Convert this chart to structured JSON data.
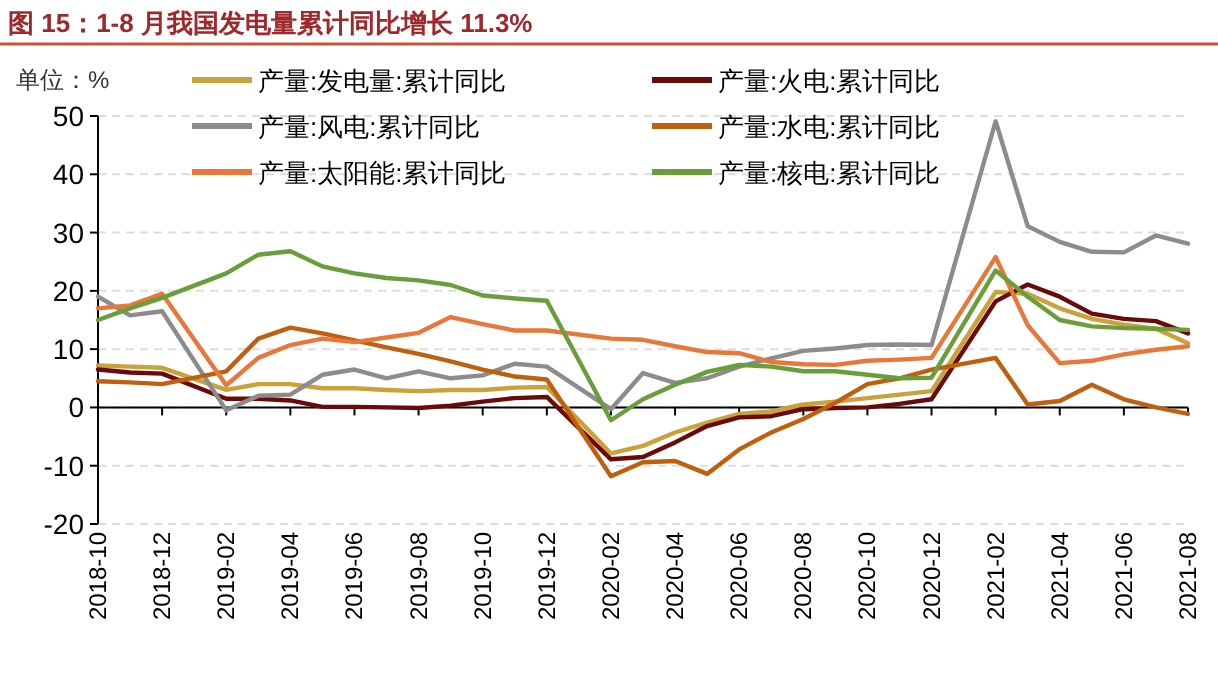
{
  "chart_data": {
    "type": "line",
    "title": "图 15：1-8 月我国发电量累计同比增长 11.3%",
    "annotations": [
      "单位：%"
    ],
    "x": [
      "2018-10",
      "2018-11",
      "2018-12",
      "2019-02",
      "2019-03",
      "2019-04",
      "2019-05",
      "2019-06",
      "2019-07",
      "2019-08",
      "2019-09",
      "2019-10",
      "2019-11",
      "2019-12",
      "2020-02",
      "2020-03",
      "2020-04",
      "2020-05",
      "2020-06",
      "2020-07",
      "2020-08",
      "2020-09",
      "2020-10",
      "2020-11",
      "2020-12",
      "2021-02",
      "2021-03",
      "2021-04",
      "2021-05",
      "2021-06",
      "2021-07",
      "2021-08"
    ],
    "series": [
      {
        "name": "产量:发电量:累计同比",
        "color": "#c9a23a",
        "values": [
          7.2,
          7.0,
          6.8,
          3.0,
          4.0,
          4.0,
          3.3,
          3.3,
          3.0,
          2.8,
          3.0,
          3.0,
          3.4,
          3.5,
          -7.9,
          -6.6,
          -4.3,
          -2.6,
          -1.1,
          -0.7,
          0.5,
          1.0,
          1.6,
          2.2,
          2.8,
          19.8,
          19.5,
          17.0,
          15.2,
          14.2,
          13.5,
          11.0
        ]
      },
      {
        "name": "产量:火电:累计同比",
        "color": "#6b0a0a",
        "values": [
          6.5,
          6.0,
          5.8,
          1.5,
          1.5,
          1.2,
          0.1,
          0.1,
          0.0,
          -0.1,
          0.3,
          1.0,
          1.6,
          1.8,
          -8.9,
          -8.5,
          -6.0,
          -3.2,
          -1.7,
          -1.5,
          -0.3,
          -0.1,
          0.0,
          0.6,
          1.4,
          18.2,
          21.1,
          19.0,
          16.1,
          15.2,
          14.8,
          12.7
        ]
      },
      {
        "name": "产量:风电:累计同比",
        "color": "#8c8c8c",
        "values": [
          19.0,
          15.8,
          16.5,
          -0.5,
          2.0,
          2.2,
          5.6,
          6.5,
          5.0,
          6.2,
          5.0,
          5.5,
          7.5,
          7.0,
          -0.3,
          5.9,
          4.2,
          5.0,
          7.0,
          8.4,
          9.7,
          10.1,
          10.7,
          10.8,
          10.7,
          49.1,
          31.1,
          28.4,
          26.7,
          26.6,
          29.5,
          28.1
        ]
      },
      {
        "name": "产量:水电:累计同比",
        "color": "#c0600e",
        "values": [
          4.5,
          4.3,
          4.0,
          6.2,
          11.8,
          13.7,
          12.7,
          11.5,
          10.3,
          9.2,
          7.9,
          6.5,
          5.3,
          4.8,
          -11.8,
          -9.4,
          -9.2,
          -11.4,
          -7.2,
          -4.3,
          -2.0,
          0.8,
          4.0,
          5.0,
          6.5,
          8.5,
          0.5,
          1.1,
          3.9,
          1.4,
          0.0,
          -1.1
        ]
      },
      {
        "name": "产量:太阳能:累计同比",
        "color": "#e8773a",
        "values": [
          17.0,
          17.5,
          19.5,
          3.8,
          8.5,
          10.7,
          11.8,
          11.2,
          12.0,
          12.8,
          15.5,
          14.3,
          13.2,
          13.2,
          11.8,
          11.6,
          10.5,
          9.5,
          9.3,
          7.8,
          7.4,
          7.3,
          8.0,
          8.2,
          8.5,
          25.8,
          14.1,
          7.6,
          8.0,
          9.1,
          9.9,
          10.5
        ]
      },
      {
        "name": "产量:核电:累计同比",
        "color": "#6a9e3a",
        "values": [
          15.0,
          17.0,
          18.8,
          23.0,
          26.2,
          26.8,
          24.2,
          23.0,
          22.2,
          21.8,
          21.0,
          19.2,
          18.7,
          18.3,
          -2.2,
          1.4,
          3.9,
          6.1,
          7.3,
          7.0,
          6.2,
          6.2,
          5.6,
          5.0,
          5.1,
          23.5,
          19.0,
          15.0,
          13.9,
          13.6,
          13.5,
          13.3
        ]
      }
    ],
    "xlim": [
      "2018-10",
      "2021-08"
    ],
    "xticks": [
      "2018-10",
      "2018-12",
      "2019-02",
      "2019-04",
      "2019-06",
      "2019-08",
      "2019-10",
      "2019-12",
      "2020-02",
      "2020-04",
      "2020-06",
      "2020-08",
      "2020-10",
      "2020-12",
      "2021-02",
      "2021-04",
      "2021-06",
      "2021-08"
    ],
    "ylim": [
      -20,
      50
    ],
    "yticks": [
      -20,
      -10,
      0,
      10,
      20,
      30,
      40,
      50
    ],
    "grid": "y",
    "legend": "top",
    "marker": "none",
    "line_style": "solid"
  }
}
